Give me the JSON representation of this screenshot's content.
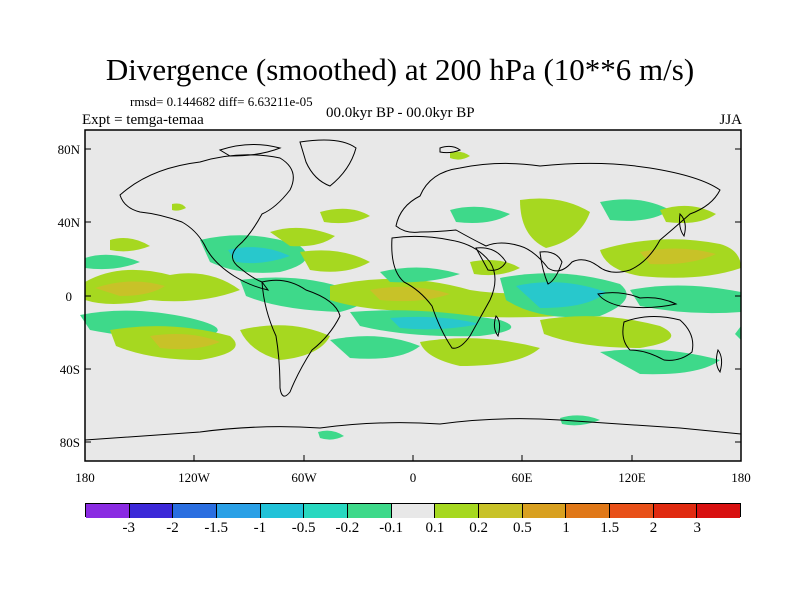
{
  "title": "Divergence (smoothed) at 200 hPa (10**6 m/s)",
  "stats": "rmsd= 0.144682 diff= 6.63211e-05",
  "experiment": "Expt = temga-temaa",
  "period": "00.0kyr BP - 00.0kyr BP",
  "season": "JJA",
  "axes": {
    "lat_labels": [
      "80N",
      "40N",
      "0",
      "40S",
      "80S"
    ],
    "lon_labels": [
      "180",
      "120W",
      "60W",
      "0",
      "60E",
      "120E",
      "180"
    ]
  },
  "colorbar": {
    "labels": [
      "-3",
      "-2",
      "-1.5",
      "-1",
      "-0.5",
      "-0.2",
      "-0.1",
      "0.1",
      "0.2",
      "0.5",
      "1",
      "1.5",
      "2",
      "3"
    ],
    "colors": [
      "#8a2be2",
      "#3c28d8",
      "#2a6ee0",
      "#2aa0e6",
      "#22c2d8",
      "#28d8c0",
      "#3ed98a",
      "#e8e8e8",
      "#a6d820",
      "#c8c228",
      "#d8a020",
      "#e07818",
      "#e85018",
      "#e02a10",
      "#d81010"
    ]
  },
  "map": {
    "background": "#e8e8e8",
    "positive_colors": [
      "#a6d820",
      "#c8c228"
    ],
    "negative_colors": [
      "#3ed98a",
      "#28c8cc"
    ]
  }
}
